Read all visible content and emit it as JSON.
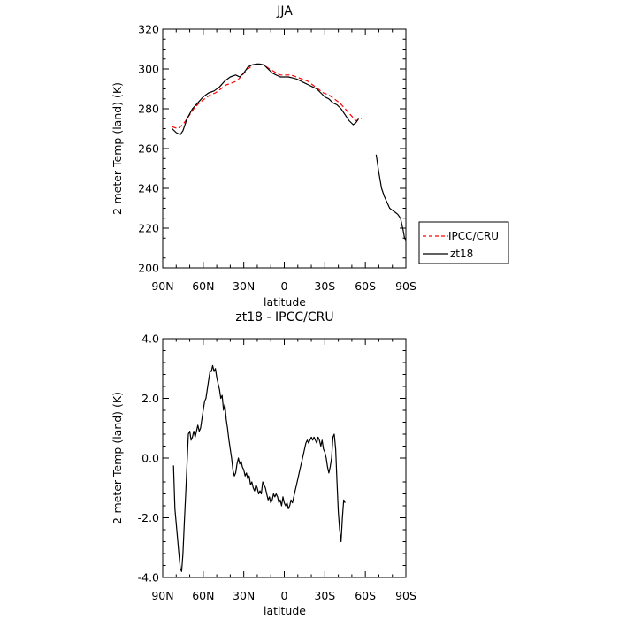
{
  "chart_data": [
    {
      "type": "line",
      "title": "JJA",
      "xlabel": "latitude",
      "ylabel": "2-meter Temp (land) (K)",
      "ylim": [
        200,
        320
      ],
      "y_ticks": [
        200,
        220,
        240,
        260,
        280,
        300,
        320
      ],
      "y_tick_labels": [
        "200",
        "220",
        "240",
        "260",
        "280",
        "300",
        "320"
      ],
      "xlim": [
        90,
        -90
      ],
      "x_ticks": [
        90,
        60,
        30,
        0,
        -30,
        -60,
        -90
      ],
      "x_tick_labels": [
        "90N",
        "60N",
        "30N",
        "0",
        "30S",
        "60S",
        "90S"
      ],
      "legend": {
        "placement": "right",
        "entries": [
          "IPCC/CRU",
          "zt18"
        ]
      },
      "series": [
        {
          "name": "IPCC/CRU",
          "color": "#ff0000",
          "style": "dashed",
          "segments": [
            [
              [
                83,
                271
              ],
              [
                79,
                270
              ],
              [
                75,
                272
              ],
              [
                71,
                276
              ],
              [
                67,
                280
              ],
              [
                63,
                283
              ],
              [
                59,
                285
              ],
              [
                55,
                287
              ],
              [
                51,
                288
              ],
              [
                47,
                290
              ],
              [
                43,
                292
              ],
              [
                39,
                293
              ],
              [
                35,
                294
              ],
              [
                31,
                297
              ],
              [
                27,
                300
              ],
              [
                23,
                302
              ],
              [
                19,
                302.5
              ],
              [
                15,
                302
              ],
              [
                11,
                300
              ],
              [
                7,
                298.5
              ],
              [
                3,
                297
              ],
              [
                -1,
                297
              ],
              [
                -5,
                297
              ],
              [
                -9,
                296
              ],
              [
                -13,
                295
              ],
              [
                -17,
                294
              ],
              [
                -21,
                292
              ],
              [
                -25,
                290
              ],
              [
                -29,
                288
              ],
              [
                -33,
                287
              ],
              [
                -37,
                285
              ],
              [
                -41,
                283
              ],
              [
                -45,
                280
              ],
              [
                -49,
                277
              ],
              [
                -53,
                274
              ],
              [
                -57,
                275
              ]
            ]
          ]
        },
        {
          "name": "zt18",
          "color": "#000000",
          "style": "solid",
          "segments": [
            [
              [
                83,
                270
              ],
              [
                80,
                268
              ],
              [
                77,
                267
              ],
              [
                75,
                269
              ],
              [
                72,
                275
              ],
              [
                68,
                280
              ],
              [
                64,
                283
              ],
              [
                60,
                286
              ],
              [
                56,
                288
              ],
              [
                52,
                289
              ],
              [
                48,
                291
              ],
              [
                44,
                294
              ],
              [
                40,
                296
              ],
              [
                36,
                297
              ],
              [
                33,
                296
              ],
              [
                30,
                298
              ],
              [
                27,
                301
              ],
              [
                24,
                302
              ],
              [
                21,
                302.5
              ],
              [
                18,
                302.5
              ],
              [
                15,
                302
              ],
              [
                12,
                300
              ],
              [
                9,
                298
              ],
              [
                6,
                297
              ],
              [
                3,
                296
              ],
              [
                0,
                296
              ],
              [
                -3,
                296
              ],
              [
                -6,
                295.5
              ],
              [
                -9,
                295
              ],
              [
                -12,
                294
              ],
              [
                -15,
                293
              ],
              [
                -18,
                292
              ],
              [
                -21,
                291
              ],
              [
                -24,
                290
              ],
              [
                -27,
                288
              ],
              [
                -30,
                286
              ],
              [
                -33,
                285
              ],
              [
                -36,
                283
              ],
              [
                -39,
                282
              ],
              [
                -42,
                280
              ],
              [
                -45,
                277
              ],
              [
                -48,
                274
              ],
              [
                -51,
                272
              ],
              [
                -53,
                273
              ],
              [
                -55,
                275
              ]
            ],
            [
              [
                -68,
                257
              ],
              [
                -70,
                248
              ],
              [
                -72,
                240
              ],
              [
                -74,
                236
              ],
              [
                -76,
                233
              ],
              [
                -78,
                230
              ],
              [
                -80,
                229
              ],
              [
                -82,
                228
              ],
              [
                -84,
                227
              ],
              [
                -86,
                225
              ],
              [
                -87,
                222
              ],
              [
                -88,
                219
              ],
              [
                -89,
                215
              ],
              [
                -90,
                214
              ]
            ]
          ]
        }
      ]
    },
    {
      "type": "line",
      "title": "zt18 - IPCC/CRU",
      "xlabel": "latitude",
      "ylabel": "2-meter Temp (land) (K)",
      "ylim": [
        -4.0,
        4.0
      ],
      "y_ticks": [
        -4,
        -2,
        0,
        2,
        4
      ],
      "y_tick_labels": [
        "-4.0",
        "-2.0",
        "0.0",
        "2.0",
        "4.0"
      ],
      "xlim": [
        90,
        -90
      ],
      "x_ticks": [
        90,
        60,
        30,
        0,
        -30,
        -60,
        -90
      ],
      "x_tick_labels": [
        "90N",
        "60N",
        "30N",
        "0",
        "30S",
        "60S",
        "90S"
      ],
      "series": [
        {
          "name": "zt18",
          "color": "#000000",
          "style": "solid",
          "segments": [
            [
              [
                82,
                -0.25
              ],
              [
                81,
                -1.7
              ],
              [
                80,
                -2.2
              ],
              [
                79,
                -2.7
              ],
              [
                78,
                -3.2
              ],
              [
                77,
                -3.7
              ],
              [
                76,
                -3.8
              ],
              [
                75,
                -3.2
              ],
              [
                74,
                -2.2
              ],
              [
                73,
                -1.2
              ],
              [
                72,
                -0.2
              ],
              [
                71,
                0.8
              ],
              [
                70,
                0.9
              ],
              [
                69,
                0.6
              ],
              [
                68,
                0.7
              ],
              [
                67,
                0.9
              ],
              [
                66,
                0.7
              ],
              [
                65,
                0.9
              ],
              [
                64,
                1.1
              ],
              [
                63,
                0.9
              ],
              [
                62,
                1.0
              ],
              [
                61,
                1.3
              ],
              [
                60,
                1.6
              ],
              [
                59,
                1.9
              ],
              [
                58,
                2.0
              ],
              [
                57,
                2.3
              ],
              [
                56,
                2.6
              ],
              [
                55,
                2.9
              ],
              [
                54,
                2.9
              ],
              [
                53,
                3.1
              ],
              [
                52,
                2.9
              ],
              [
                51,
                3.0
              ],
              [
                50,
                2.7
              ],
              [
                49,
                2.5
              ],
              [
                48,
                2.3
              ],
              [
                47,
                2.0
              ],
              [
                46,
                2.1
              ],
              [
                45,
                1.6
              ],
              [
                44,
                1.8
              ],
              [
                43,
                1.3
              ],
              [
                42,
                1.0
              ],
              [
                41,
                0.6
              ],
              [
                40,
                0.3
              ],
              [
                39,
                0.0
              ],
              [
                38,
                -0.4
              ],
              [
                37,
                -0.6
              ],
              [
                36,
                -0.5
              ],
              [
                35,
                -0.2
              ],
              [
                34,
                0.0
              ],
              [
                33,
                -0.2
              ],
              [
                32,
                -0.1
              ],
              [
                31,
                -0.3
              ],
              [
                30,
                -0.4
              ],
              [
                29,
                -0.6
              ],
              [
                28,
                -0.5
              ],
              [
                27,
                -0.7
              ],
              [
                26,
                -0.6
              ],
              [
                25,
                -0.9
              ],
              [
                24,
                -0.8
              ],
              [
                23,
                -1.0
              ],
              [
                22,
                -1.1
              ],
              [
                21,
                -0.9
              ],
              [
                20,
                -1.0
              ],
              [
                19,
                -1.2
              ],
              [
                18,
                -1.1
              ],
              [
                17,
                -1.2
              ],
              [
                16,
                -0.8
              ],
              [
                15,
                -0.9
              ],
              [
                14,
                -1.0
              ],
              [
                13,
                -1.2
              ],
              [
                12,
                -1.4
              ],
              [
                11,
                -1.3
              ],
              [
                10,
                -1.5
              ],
              [
                9,
                -1.4
              ],
              [
                8,
                -1.2
              ],
              [
                7,
                -1.3
              ],
              [
                6,
                -1.2
              ],
              [
                5,
                -1.3
              ],
              [
                4,
                -1.5
              ],
              [
                3,
                -1.4
              ],
              [
                2,
                -1.6
              ],
              [
                1,
                -1.3
              ],
              [
                0,
                -1.5
              ],
              [
                -1,
                -1.6
              ],
              [
                -2,
                -1.5
              ],
              [
                -3,
                -1.7
              ],
              [
                -4,
                -1.6
              ],
              [
                -5,
                -1.4
              ],
              [
                -6,
                -1.5
              ],
              [
                -7,
                -1.3
              ],
              [
                -8,
                -1.1
              ],
              [
                -9,
                -0.9
              ],
              [
                -10,
                -0.7
              ],
              [
                -11,
                -0.5
              ],
              [
                -12,
                -0.3
              ],
              [
                -13,
                -0.1
              ],
              [
                -14,
                0.1
              ],
              [
                -15,
                0.3
              ],
              [
                -16,
                0.5
              ],
              [
                -17,
                0.6
              ],
              [
                -18,
                0.5
              ],
              [
                -19,
                0.6
              ],
              [
                -20,
                0.7
              ],
              [
                -21,
                0.6
              ],
              [
                -22,
                0.7
              ],
              [
                -23,
                0.6
              ],
              [
                -24,
                0.5
              ],
              [
                -25,
                0.7
              ],
              [
                -26,
                0.6
              ],
              [
                -27,
                0.4
              ],
              [
                -28,
                0.6
              ],
              [
                -29,
                0.3
              ],
              [
                -30,
                0.2
              ],
              [
                -31,
                0.0
              ],
              [
                -32,
                -0.3
              ],
              [
                -33,
                -0.5
              ],
              [
                -34,
                -0.3
              ],
              [
                -35,
                0.0
              ],
              [
                -36,
                0.7
              ],
              [
                -37,
                0.8
              ],
              [
                -38,
                0.3
              ],
              [
                -39,
                -0.8
              ],
              [
                -40,
                -1.8
              ],
              [
                -41,
                -2.4
              ],
              [
                -42,
                -2.8
              ],
              [
                -43,
                -2.0
              ],
              [
                -44,
                -1.4
              ],
              [
                -45,
                -1.5
              ]
            ]
          ]
        }
      ]
    }
  ]
}
